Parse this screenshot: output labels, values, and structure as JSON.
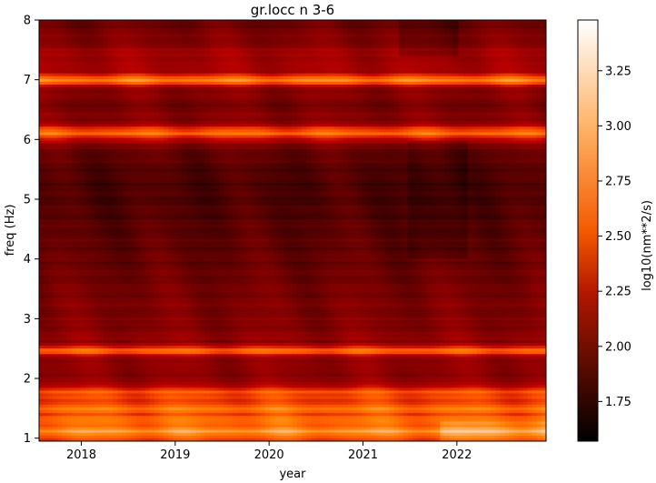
{
  "chart_data": {
    "type": "heatmap",
    "title": "gr.locc n 3-6",
    "xlabel": "year",
    "ylabel": "freq (Hz)",
    "colorbar_label": "log10(nm**2/s)",
    "colormap": "gist_heat",
    "x_range": [
      2017.55,
      2022.95
    ],
    "ylim": [
      0.95,
      8.0
    ],
    "x_ticks": [
      {
        "value": 2018,
        "label": "2018"
      },
      {
        "value": 2019,
        "label": "2019"
      },
      {
        "value": 2020,
        "label": "2020"
      },
      {
        "value": 2021,
        "label": "2021"
      },
      {
        "value": 2022,
        "label": "2022"
      }
    ],
    "y_ticks": [
      {
        "value": 1,
        "label": "1"
      },
      {
        "value": 2,
        "label": "2"
      },
      {
        "value": 3,
        "label": "3"
      },
      {
        "value": 4,
        "label": "4"
      },
      {
        "value": 5,
        "label": "5"
      },
      {
        "value": 6,
        "label": "6"
      },
      {
        "value": 7,
        "label": "7"
      },
      {
        "value": 8,
        "label": "8"
      }
    ],
    "color_range": [
      1.57,
      3.48
    ],
    "colorbar_ticks": [
      {
        "value": 1.75,
        "label": "1.75"
      },
      {
        "value": 2.0,
        "label": "2.00"
      },
      {
        "value": 2.25,
        "label": "2.25"
      },
      {
        "value": 2.5,
        "label": "2.50"
      },
      {
        "value": 2.75,
        "label": "2.75"
      },
      {
        "value": 3.0,
        "label": "3.00"
      },
      {
        "value": 3.25,
        "label": "3.25"
      }
    ],
    "freq_profile": [
      {
        "freq": 1.0,
        "value": 2.85
      },
      {
        "freq": 1.1,
        "value": 3.1
      },
      {
        "freq": 1.2,
        "value": 2.9
      },
      {
        "freq": 1.3,
        "value": 3.0
      },
      {
        "freq": 1.4,
        "value": 2.75
      },
      {
        "freq": 1.5,
        "value": 3.05
      },
      {
        "freq": 1.6,
        "value": 2.7
      },
      {
        "freq": 1.7,
        "value": 2.75
      },
      {
        "freq": 1.78,
        "value": 2.9
      },
      {
        "freq": 1.9,
        "value": 2.35
      },
      {
        "freq": 2.0,
        "value": 2.3
      },
      {
        "freq": 2.2,
        "value": 2.25
      },
      {
        "freq": 2.35,
        "value": 2.35
      },
      {
        "freq": 2.46,
        "value": 2.95
      },
      {
        "freq": 2.6,
        "value": 2.3
      },
      {
        "freq": 2.8,
        "value": 2.25
      },
      {
        "freq": 3.0,
        "value": 2.2
      },
      {
        "freq": 3.2,
        "value": 2.2
      },
      {
        "freq": 3.5,
        "value": 2.15
      },
      {
        "freq": 3.8,
        "value": 2.1
      },
      {
        "freq": 4.2,
        "value": 2.05
      },
      {
        "freq": 4.6,
        "value": 2.0
      },
      {
        "freq": 5.0,
        "value": 1.95
      },
      {
        "freq": 5.3,
        "value": 1.95
      },
      {
        "freq": 5.6,
        "value": 2.0
      },
      {
        "freq": 5.9,
        "value": 2.15
      },
      {
        "freq": 6.1,
        "value": 2.95
      },
      {
        "freq": 6.3,
        "value": 2.25
      },
      {
        "freq": 6.6,
        "value": 2.15
      },
      {
        "freq": 6.85,
        "value": 2.3
      },
      {
        "freq": 7.0,
        "value": 3.05
      },
      {
        "freq": 7.15,
        "value": 2.35
      },
      {
        "freq": 7.4,
        "value": 2.4
      },
      {
        "freq": 7.6,
        "value": 2.25
      },
      {
        "freq": 8.0,
        "value": 2.1
      }
    ]
  }
}
